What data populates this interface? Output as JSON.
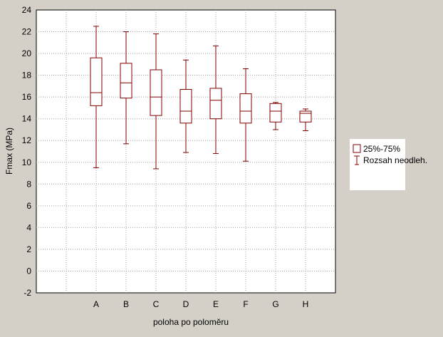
{
  "chart_data": {
    "type": "box",
    "xlabel": "poloha po poloměru",
    "ylabel": "Fmax (MPa)",
    "categories": [
      "A",
      "B",
      "C",
      "D",
      "E",
      "F",
      "G",
      "H"
    ],
    "boxes": [
      {
        "category": "A",
        "min": 9.5,
        "q1": 15.2,
        "median": 16.4,
        "q3": 19.6,
        "max": 22.5
      },
      {
        "category": "B",
        "min": 11.7,
        "q1": 15.9,
        "median": 17.3,
        "q3": 19.1,
        "max": 22.0
      },
      {
        "category": "C",
        "min": 9.4,
        "q1": 14.3,
        "median": 16.0,
        "q3": 18.5,
        "max": 21.8
      },
      {
        "category": "D",
        "min": 10.9,
        "q1": 13.6,
        "median": 14.7,
        "q3": 16.7,
        "max": 19.4
      },
      {
        "category": "E",
        "min": 10.8,
        "q1": 14.0,
        "median": 15.7,
        "q3": 16.8,
        "max": 20.7
      },
      {
        "category": "F",
        "min": 10.1,
        "q1": 13.6,
        "median": 14.7,
        "q3": 16.3,
        "max": 18.6
      },
      {
        "category": "G",
        "min": 13.0,
        "q1": 13.7,
        "median": 14.7,
        "q3": 15.4,
        "max": 15.5
      },
      {
        "category": "H",
        "min": 12.9,
        "q1": 13.7,
        "median": 14.5,
        "q3": 14.7,
        "max": 14.9
      }
    ],
    "ylim": [
      -2,
      24
    ],
    "yticks": [
      -2,
      0,
      2,
      4,
      6,
      8,
      10,
      12,
      14,
      16,
      18,
      20,
      22,
      24
    ],
    "grid": true,
    "legend": {
      "position": "right",
      "entries": [
        {
          "label": "25%-75%",
          "symbol": "box"
        },
        {
          "label": "Rozsah neodleh.",
          "symbol": "whisker"
        }
      ]
    },
    "colors": {
      "series": "#800000",
      "plot_bg": "#ffffff",
      "frame_bg": "#d4d0c8"
    }
  }
}
